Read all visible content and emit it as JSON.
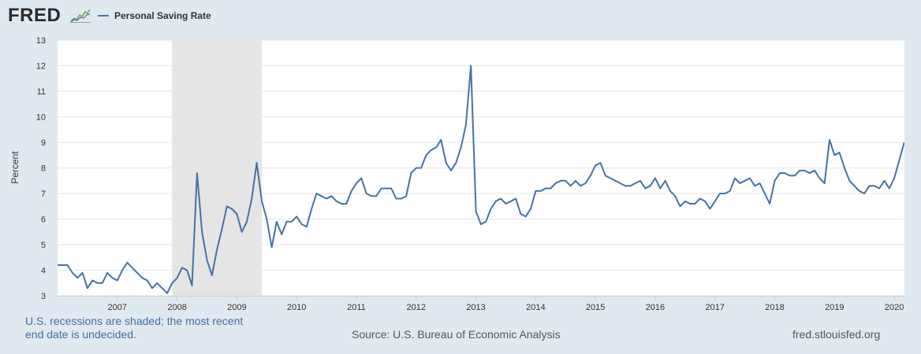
{
  "header": {
    "logo_text": "FRED",
    "legend_label": "Personal Saving Rate"
  },
  "colors": {
    "series": "#4572a7",
    "recession": "#e5e5e5",
    "plot_background": "#ffffff",
    "page_background": "#e1e9f0"
  },
  "footer": {
    "note": "U.S. recessions are shaded; the most recent end date is undecided.",
    "source": "Source: U.S. Bureau of Economic Analysis",
    "url": "fred.stlouisfed.org"
  },
  "chart_data": {
    "type": "line",
    "title": "",
    "xlabel": "",
    "ylabel": "Percent",
    "xlim": [
      2006.0,
      2020.17
    ],
    "ylim": [
      3,
      13
    ],
    "yticks": [
      3,
      4,
      5,
      6,
      7,
      8,
      9,
      10,
      11,
      12,
      13
    ],
    "xticks": [
      "2007",
      "2008",
      "2009",
      "2010",
      "2011",
      "2012",
      "2013",
      "2014",
      "2015",
      "2016",
      "2017",
      "2018",
      "2019",
      "2020"
    ],
    "grid": "horizontal",
    "legend": "top-left",
    "recessions": [
      {
        "start": "2007-12",
        "end": "2009-06"
      }
    ],
    "series": [
      {
        "name": "Personal Saving Rate",
        "x": [
          "2006-01",
          "2006-02",
          "2006-03",
          "2006-04",
          "2006-05",
          "2006-06",
          "2006-07",
          "2006-08",
          "2006-09",
          "2006-10",
          "2006-11",
          "2006-12",
          "2007-01",
          "2007-02",
          "2007-03",
          "2007-04",
          "2007-05",
          "2007-06",
          "2007-07",
          "2007-08",
          "2007-09",
          "2007-10",
          "2007-11",
          "2007-12",
          "2008-01",
          "2008-02",
          "2008-03",
          "2008-04",
          "2008-05",
          "2008-06",
          "2008-07",
          "2008-08",
          "2008-09",
          "2008-10",
          "2008-11",
          "2008-12",
          "2009-01",
          "2009-02",
          "2009-03",
          "2009-04",
          "2009-05",
          "2009-06",
          "2009-07",
          "2009-08",
          "2009-09",
          "2009-10",
          "2009-11",
          "2009-12",
          "2010-01",
          "2010-02",
          "2010-03",
          "2010-04",
          "2010-05",
          "2010-06",
          "2010-07",
          "2010-08",
          "2010-09",
          "2010-10",
          "2010-11",
          "2010-12",
          "2011-01",
          "2011-02",
          "2011-03",
          "2011-04",
          "2011-05",
          "2011-06",
          "2011-07",
          "2011-08",
          "2011-09",
          "2011-10",
          "2011-11",
          "2011-12",
          "2012-01",
          "2012-02",
          "2012-03",
          "2012-04",
          "2012-05",
          "2012-06",
          "2012-07",
          "2012-08",
          "2012-09",
          "2012-10",
          "2012-11",
          "2012-12",
          "2013-01",
          "2013-02",
          "2013-03",
          "2013-04",
          "2013-05",
          "2013-06",
          "2013-07",
          "2013-08",
          "2013-09",
          "2013-10",
          "2013-11",
          "2013-12",
          "2014-01",
          "2014-02",
          "2014-03",
          "2014-04",
          "2014-05",
          "2014-06",
          "2014-07",
          "2014-08",
          "2014-09",
          "2014-10",
          "2014-11",
          "2014-12",
          "2015-01",
          "2015-02",
          "2015-03",
          "2015-04",
          "2015-05",
          "2015-06",
          "2015-07",
          "2015-08",
          "2015-09",
          "2015-10",
          "2015-11",
          "2015-12",
          "2016-01",
          "2016-02",
          "2016-03",
          "2016-04",
          "2016-05",
          "2016-06",
          "2016-07",
          "2016-08",
          "2016-09",
          "2016-10",
          "2016-11",
          "2016-12",
          "2017-01",
          "2017-02",
          "2017-03",
          "2017-04",
          "2017-05",
          "2017-06",
          "2017-07",
          "2017-08",
          "2017-09",
          "2017-10",
          "2017-11",
          "2017-12",
          "2018-01",
          "2018-02",
          "2018-03",
          "2018-04",
          "2018-05",
          "2018-06",
          "2018-07",
          "2018-08",
          "2018-09",
          "2018-10",
          "2018-11",
          "2018-12",
          "2019-01",
          "2019-02",
          "2019-03",
          "2019-04",
          "2019-05",
          "2019-06",
          "2019-07",
          "2019-08",
          "2019-09",
          "2019-10",
          "2019-11",
          "2019-12",
          "2020-01",
          "2020-02",
          "2020-03"
        ],
        "values": [
          4.2,
          4.2,
          4.2,
          3.9,
          3.7,
          3.9,
          3.3,
          3.6,
          3.5,
          3.5,
          3.9,
          3.7,
          3.6,
          4.0,
          4.3,
          4.1,
          3.9,
          3.7,
          3.6,
          3.3,
          3.5,
          3.3,
          3.1,
          3.5,
          3.7,
          4.1,
          4.0,
          3.4,
          7.8,
          5.5,
          4.4,
          3.8,
          4.8,
          5.6,
          6.5,
          6.4,
          6.2,
          5.5,
          5.9,
          6.8,
          8.2,
          6.7,
          6.0,
          4.9,
          5.9,
          5.4,
          5.9,
          5.9,
          6.1,
          5.8,
          5.7,
          6.4,
          7.0,
          6.9,
          6.8,
          6.9,
          6.7,
          6.6,
          6.6,
          7.1,
          7.4,
          7.6,
          7.0,
          6.9,
          6.9,
          7.2,
          7.2,
          7.2,
          6.8,
          6.8,
          6.9,
          7.8,
          8.0,
          8.0,
          8.5,
          8.7,
          8.8,
          9.1,
          8.2,
          7.9,
          8.2,
          8.8,
          9.7,
          12.0,
          6.3,
          5.8,
          5.9,
          6.4,
          6.7,
          6.8,
          6.6,
          6.7,
          6.8,
          6.2,
          6.1,
          6.4,
          7.1,
          7.1,
          7.2,
          7.2,
          7.4,
          7.5,
          7.5,
          7.3,
          7.5,
          7.3,
          7.4,
          7.7,
          8.1,
          8.2,
          7.7,
          7.6,
          7.5,
          7.4,
          7.3,
          7.3,
          7.4,
          7.5,
          7.2,
          7.3,
          7.6,
          7.2,
          7.5,
          7.1,
          6.9,
          6.5,
          6.7,
          6.6,
          6.6,
          6.8,
          6.7,
          6.4,
          6.7,
          7.0,
          7.0,
          7.1,
          7.6,
          7.4,
          7.5,
          7.6,
          7.3,
          7.4,
          7.0,
          6.6,
          7.5,
          7.8,
          7.8,
          7.7,
          7.7,
          7.9,
          7.9,
          7.8,
          7.9,
          7.6,
          7.4,
          9.1,
          8.5,
          8.6,
          8.0,
          7.5,
          7.3,
          7.1,
          7.0,
          7.3,
          7.3,
          7.2,
          7.5,
          7.2,
          7.6,
          8.3,
          9.0
        ]
      }
    ]
  }
}
